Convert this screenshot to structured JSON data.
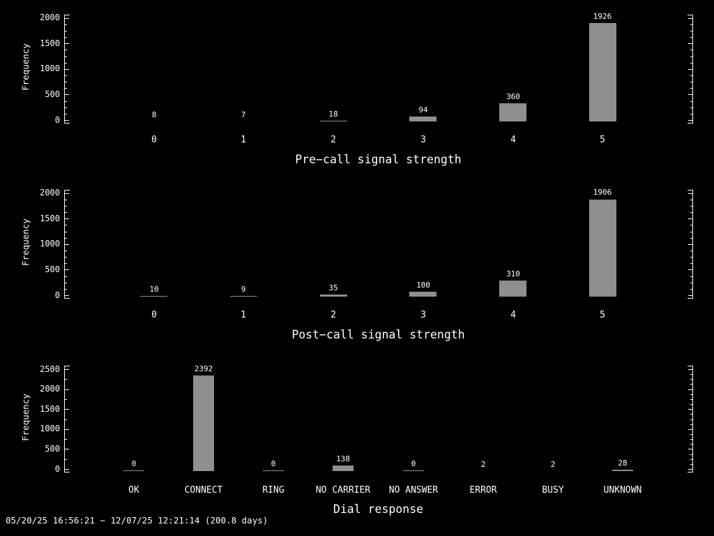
{
  "colors": {
    "background": "#000000",
    "bar": "#8f8f8f",
    "text": "#ffffff",
    "axis": "#ffffff"
  },
  "footer": {
    "text": "05/20/25 16:56:21 − 12/07/25 12:21:14 (200.8 days)"
  },
  "chart_data": [
    {
      "type": "bar",
      "title": "Pre−call signal strength",
      "ylabel": "Frequency",
      "xlabel": "",
      "categories": [
        "0",
        "1",
        "2",
        "3",
        "4",
        "5"
      ],
      "values": [
        8,
        7,
        18,
        94,
        360,
        1926
      ],
      "ylim": [
        0,
        2000
      ],
      "ytick_interval": 500,
      "ytick_labels": [
        "0",
        "500",
        "1000",
        "1500",
        "2000"
      ],
      "grid": "off",
      "legend": "none",
      "bar_color": "#8f8f8f"
    },
    {
      "type": "bar",
      "title": "Post−call signal strength",
      "ylabel": "Frequency",
      "xlabel": "",
      "categories": [
        "0",
        "1",
        "2",
        "3",
        "4",
        "5"
      ],
      "values": [
        10,
        9,
        35,
        100,
        310,
        1906
      ],
      "ylim": [
        0,
        2000
      ],
      "ytick_interval": 500,
      "ytick_labels": [
        "0",
        "500",
        "1000",
        "1500",
        "2000"
      ],
      "grid": "off",
      "legend": "none",
      "bar_color": "#8f8f8f"
    },
    {
      "type": "bar",
      "title": "Dial response",
      "ylabel": "Frequency",
      "xlabel": "",
      "categories": [
        "OK",
        "CONNECT",
        "RING",
        "NO CARRIER",
        "NO ANSWER",
        "ERROR",
        "BUSY",
        "UNKNOWN"
      ],
      "values": [
        0,
        2392,
        0,
        138,
        0,
        2,
        2,
        28
      ],
      "ylim": [
        0,
        2500
      ],
      "ytick_interval": 500,
      "ytick_labels": [
        "0",
        "500",
        "1000",
        "1500",
        "2000",
        "2500"
      ],
      "grid": "off",
      "legend": "none",
      "bar_color": "#8f8f8f"
    }
  ]
}
